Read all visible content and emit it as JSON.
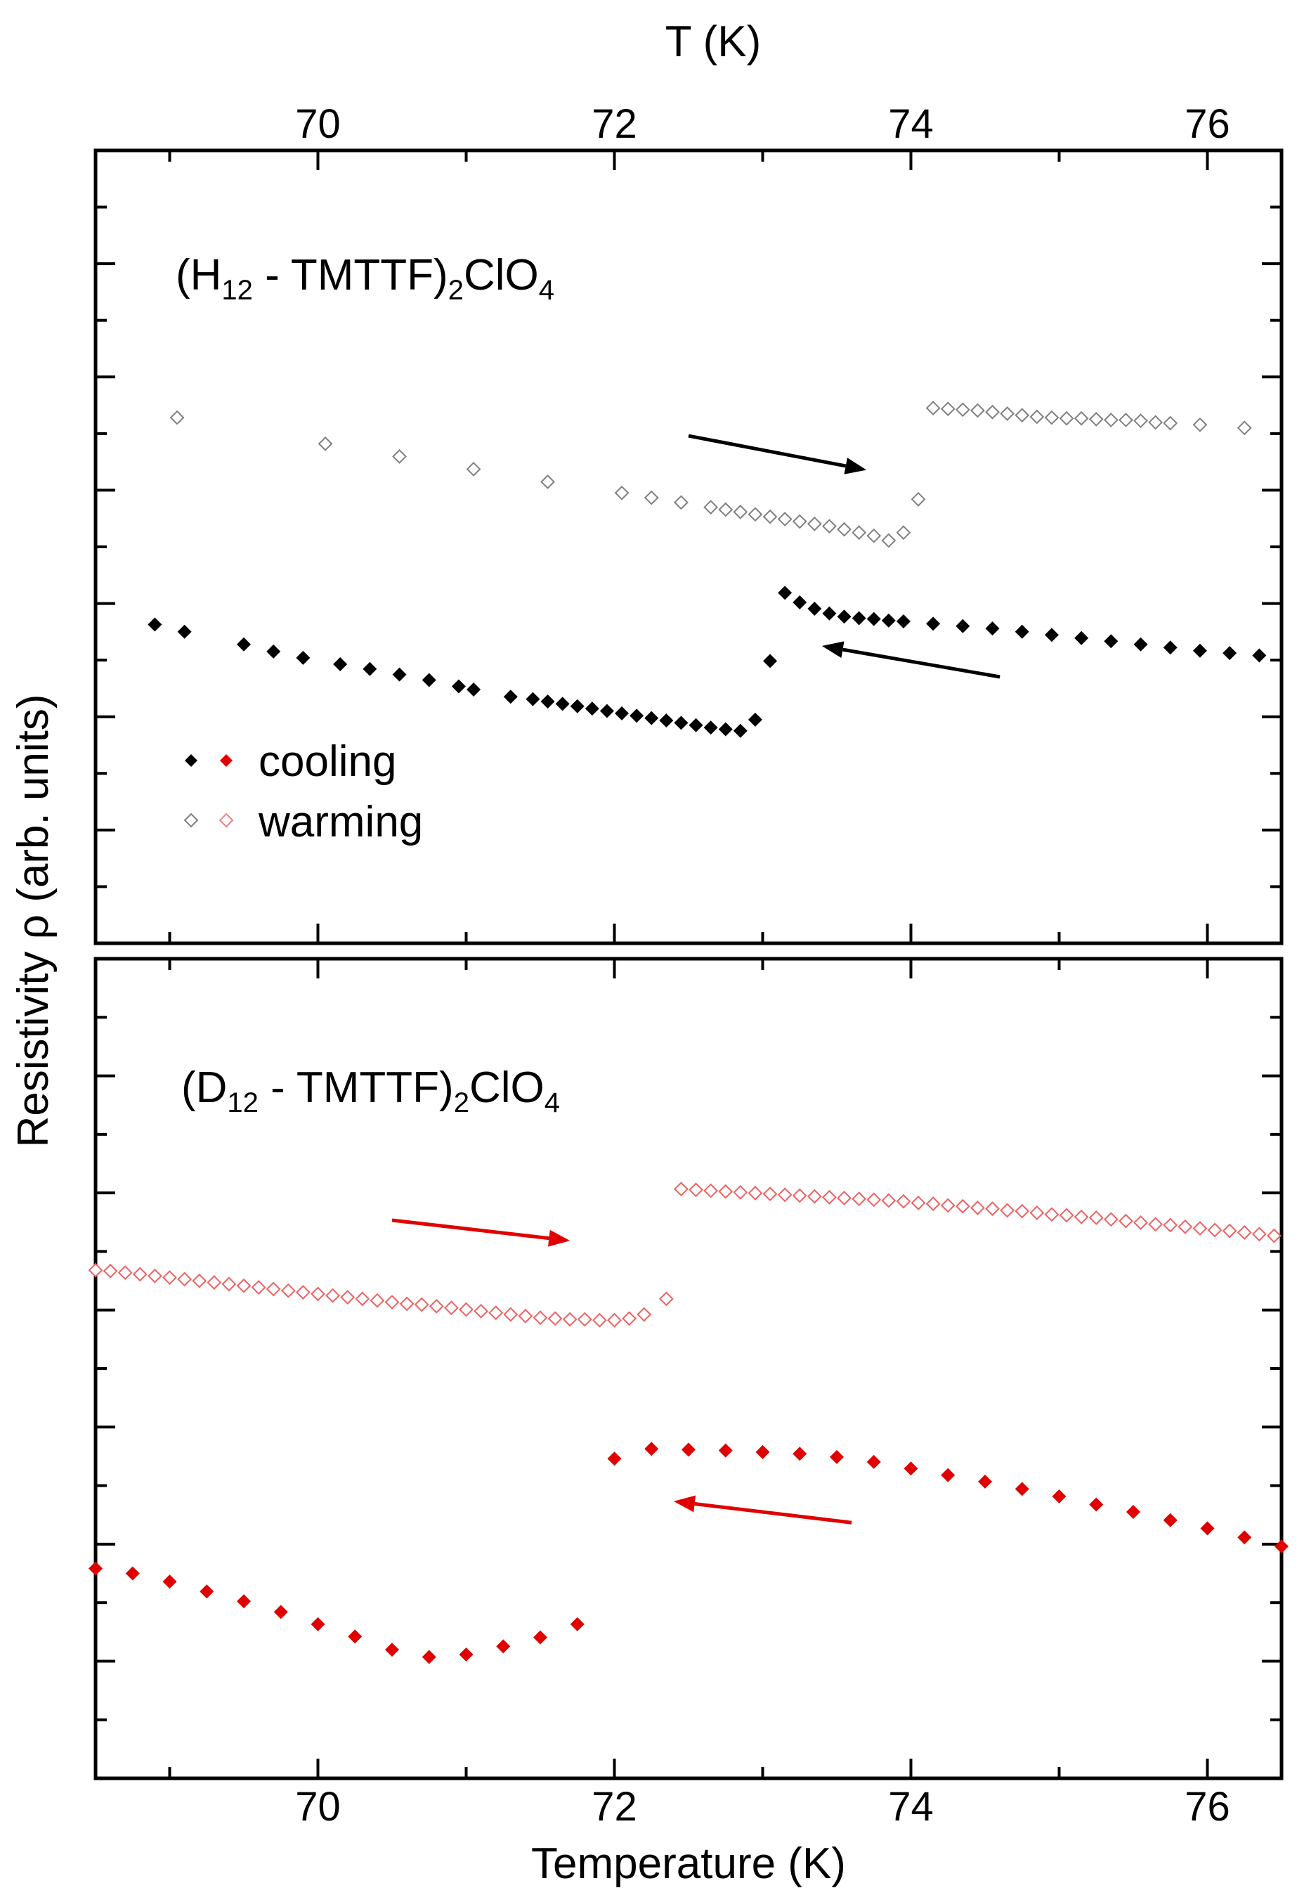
{
  "chart_data": [
    {
      "panel": "top",
      "type": "scatter",
      "title": "",
      "xlabel": "T (K)",
      "xlabel_position": "top",
      "xlim": [
        68.5,
        76.5
      ],
      "ylim": [
        0,
        1
      ],
      "y_ticks_labeled": false,
      "sample_label": {
        "pre": "(H",
        "sub1": "12",
        "mid": " - TMTTF)",
        "sub2": "2",
        "mid2": "ClO",
        "sub3": "4"
      },
      "legend": {
        "placement": "lower-left",
        "entries": [
          {
            "label": "cooling",
            "marker": "filled-diamond",
            "colors": [
              "#000000",
              "#e00000"
            ]
          },
          {
            "label": "warming",
            "marker": "open-diamond",
            "colors": [
              "#808080",
              "#f08080"
            ]
          }
        ]
      },
      "arrows": [
        {
          "direction": "warming",
          "from": [
            72.5,
            0.64
          ],
          "to": [
            73.7,
            0.597
          ],
          "color": "#000000"
        },
        {
          "direction": "cooling",
          "from": [
            74.6,
            0.336
          ],
          "to": [
            73.4,
            0.375
          ],
          "color": "#000000"
        }
      ],
      "series": [
        {
          "name": "cooling",
          "marker": "filled-diamond",
          "color": "#000000",
          "x": [
            68.9,
            69.1,
            69.5,
            69.7,
            69.9,
            70.15,
            70.35,
            70.55,
            70.75,
            70.95,
            71.05,
            71.3,
            71.45,
            71.55,
            71.65,
            71.75,
            71.85,
            71.95,
            72.05,
            72.15,
            72.25,
            72.35,
            72.45,
            72.55,
            72.65,
            72.75,
            72.85,
            72.95,
            73.05,
            73.15,
            73.25,
            73.35,
            73.45,
            73.55,
            73.65,
            73.75,
            73.85,
            73.95,
            74.15,
            74.35,
            74.55,
            74.75,
            74.95,
            75.15,
            75.35,
            75.55,
            75.75,
            75.95,
            76.15,
            76.35
          ],
          "y": [
            0.402,
            0.393,
            0.377,
            0.368,
            0.36,
            0.352,
            0.346,
            0.339,
            0.332,
            0.324,
            0.32,
            0.311,
            0.308,
            0.305,
            0.302,
            0.299,
            0.296,
            0.293,
            0.29,
            0.287,
            0.284,
            0.281,
            0.278,
            0.275,
            0.272,
            0.27,
            0.268,
            0.282,
            0.356,
            0.442,
            0.43,
            0.422,
            0.416,
            0.412,
            0.41,
            0.409,
            0.407,
            0.406,
            0.403,
            0.4,
            0.397,
            0.393,
            0.389,
            0.385,
            0.381,
            0.377,
            0.373,
            0.369,
            0.366,
            0.363
          ]
        },
        {
          "name": "warming",
          "marker": "open-diamond",
          "color": "#808080",
          "x": [
            69.05,
            70.05,
            70.55,
            71.05,
            71.55,
            72.05,
            72.25,
            72.45,
            72.65,
            72.75,
            72.85,
            72.95,
            73.05,
            73.15,
            73.25,
            73.35,
            73.45,
            73.55,
            73.65,
            73.75,
            73.85,
            73.95,
            74.05,
            74.15,
            74.25,
            74.35,
            74.45,
            74.55,
            74.65,
            74.75,
            74.85,
            74.95,
            75.05,
            75.15,
            75.25,
            75.35,
            75.45,
            75.55,
            75.65,
            75.75,
            75.95,
            76.25
          ],
          "y": [
            0.663,
            0.63,
            0.614,
            0.598,
            0.582,
            0.568,
            0.562,
            0.556,
            0.55,
            0.547,
            0.544,
            0.541,
            0.538,
            0.535,
            0.532,
            0.529,
            0.526,
            0.522,
            0.518,
            0.514,
            0.508,
            0.518,
            0.56,
            0.675,
            0.674,
            0.673,
            0.672,
            0.67,
            0.668,
            0.666,
            0.664,
            0.663,
            0.662,
            0.662,
            0.661,
            0.66,
            0.66,
            0.659,
            0.657,
            0.656,
            0.654,
            0.65
          ]
        }
      ]
    },
    {
      "panel": "bottom",
      "type": "scatter",
      "title": "",
      "xlabel": "Temperature (K)",
      "xlabel_position": "bottom",
      "ylabel": "Resistivity ρ (arb. units)",
      "xlim": [
        68.5,
        76.5
      ],
      "ylim": [
        0,
        1
      ],
      "y_ticks_labeled": false,
      "sample_label": {
        "pre": "(D",
        "sub1": "12",
        "mid": " - TMTTF)",
        "sub2": "2",
        "mid2": "ClO",
        "sub3": "4"
      },
      "arrows": [
        {
          "direction": "warming",
          "from": [
            70.5,
            0.681
          ],
          "to": [
            71.7,
            0.656
          ],
          "color": "#e00000"
        },
        {
          "direction": "cooling",
          "from": [
            73.6,
            0.312
          ],
          "to": [
            72.4,
            0.338
          ],
          "color": "#e00000"
        }
      ],
      "series": [
        {
          "name": "cooling",
          "marker": "filled-diamond",
          "color": "#e00000",
          "x": [
            68.5,
            68.75,
            69.0,
            69.25,
            69.5,
            69.75,
            70.0,
            70.25,
            70.5,
            70.75,
            71.0,
            71.25,
            71.5,
            71.75,
            72.0,
            72.25,
            72.5,
            72.75,
            73.0,
            73.25,
            73.5,
            73.75,
            74.0,
            74.25,
            74.5,
            74.75,
            75.0,
            75.25,
            75.5,
            75.75,
            76.0,
            76.25,
            76.5
          ],
          "y": [
            0.256,
            0.25,
            0.24,
            0.228,
            0.216,
            0.203,
            0.188,
            0.173,
            0.157,
            0.148,
            0.151,
            0.161,
            0.172,
            0.188,
            0.39,
            0.402,
            0.401,
            0.4,
            0.398,
            0.396,
            0.392,
            0.386,
            0.378,
            0.37,
            0.362,
            0.353,
            0.344,
            0.334,
            0.325,
            0.315,
            0.305,
            0.294,
            0.283
          ]
        },
        {
          "name": "warming",
          "marker": "open-diamond",
          "color": "#f06060",
          "x": [
            68.5,
            68.6,
            68.7,
            68.8,
            68.9,
            69.0,
            69.1,
            69.2,
            69.3,
            69.4,
            69.5,
            69.6,
            69.7,
            69.8,
            69.9,
            70.0,
            70.1,
            70.2,
            70.3,
            70.4,
            70.5,
            70.6,
            70.7,
            70.8,
            70.9,
            71.0,
            71.1,
            71.2,
            71.3,
            71.4,
            71.5,
            71.6,
            71.7,
            71.8,
            71.9,
            72.0,
            72.1,
            72.2,
            72.35,
            72.45,
            72.55,
            72.65,
            72.75,
            72.85,
            72.95,
            73.05,
            73.15,
            73.25,
            73.35,
            73.45,
            73.55,
            73.65,
            73.75,
            73.85,
            73.95,
            74.05,
            74.15,
            74.25,
            74.35,
            74.45,
            74.55,
            74.65,
            74.75,
            74.85,
            74.95,
            75.05,
            75.15,
            75.25,
            75.35,
            75.45,
            75.55,
            75.65,
            75.75,
            75.85,
            75.95,
            76.05,
            76.15,
            76.25,
            76.35,
            76.45
          ],
          "y": [
            0.62,
            0.619,
            0.617,
            0.615,
            0.613,
            0.611,
            0.609,
            0.607,
            0.605,
            0.603,
            0.601,
            0.599,
            0.597,
            0.595,
            0.593,
            0.591,
            0.589,
            0.587,
            0.585,
            0.583,
            0.581,
            0.579,
            0.578,
            0.576,
            0.574,
            0.572,
            0.57,
            0.568,
            0.566,
            0.564,
            0.562,
            0.561,
            0.56,
            0.56,
            0.559,
            0.559,
            0.561,
            0.566,
            0.585,
            0.719,
            0.718,
            0.717,
            0.716,
            0.715,
            0.714,
            0.713,
            0.712,
            0.711,
            0.71,
            0.709,
            0.708,
            0.707,
            0.706,
            0.705,
            0.704,
            0.702,
            0.701,
            0.699,
            0.698,
            0.696,
            0.695,
            0.693,
            0.692,
            0.69,
            0.688,
            0.687,
            0.685,
            0.684,
            0.682,
            0.68,
            0.678,
            0.676,
            0.675,
            0.673,
            0.671,
            0.669,
            0.668,
            0.666,
            0.664,
            0.662
          ]
        }
      ]
    }
  ],
  "axes": {
    "top_xlabel": "T (K)",
    "bottom_xlabel": "Temperature (K)",
    "ylabel": "Resistivity ρ (arb. units)",
    "xticks": [
      "70",
      "72",
      "74",
      "76"
    ],
    "xtick_values": [
      70,
      72,
      74,
      76
    ],
    "xminor": [
      69,
      71,
      73,
      75
    ]
  },
  "legend": {
    "cooling_label": "cooling",
    "warming_label": "warming"
  }
}
